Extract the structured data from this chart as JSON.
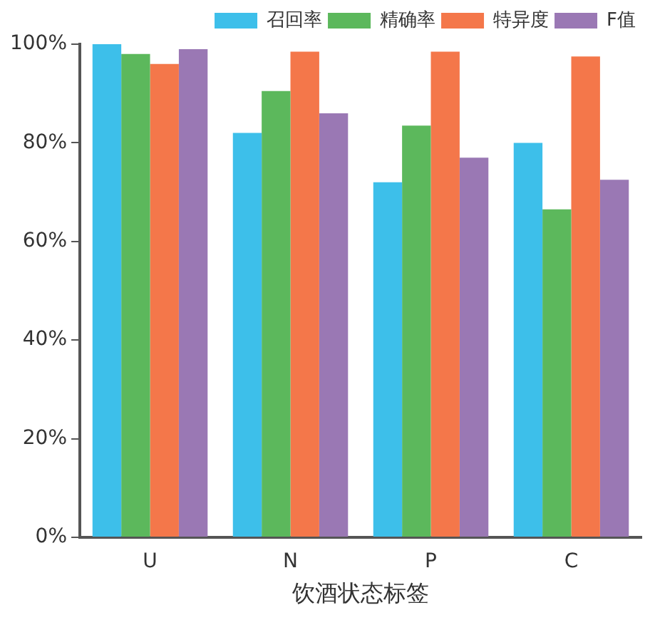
{
  "chart_data": {
    "type": "bar",
    "xlabel": "饮酒状态标签",
    "categories": [
      "U",
      "N",
      "P",
      "C"
    ],
    "series": [
      {
        "name": "召回率",
        "color": "#3dbfea",
        "values": [
          100,
          82,
          72,
          80
        ]
      },
      {
        "name": "精确率",
        "color": "#5cb85c",
        "values": [
          98,
          90.5,
          83.5,
          66.5
        ]
      },
      {
        "name": "特异度",
        "color": "#f4774a",
        "values": [
          96,
          98.5,
          98.5,
          97.5
        ]
      },
      {
        "name": "F值",
        "color": "#9a78b4",
        "values": [
          99,
          86,
          77,
          72.5
        ]
      }
    ],
    "ylim": [
      0,
      100
    ],
    "yticks": [
      {
        "value": 0,
        "label": "0%"
      },
      {
        "value": 20,
        "label": "20%"
      },
      {
        "value": 40,
        "label": "40%"
      },
      {
        "value": 60,
        "label": "60%"
      },
      {
        "value": 80,
        "label": "80%"
      },
      {
        "value": 100,
        "label": "100%"
      }
    ],
    "grid": false,
    "legend": "top right"
  }
}
